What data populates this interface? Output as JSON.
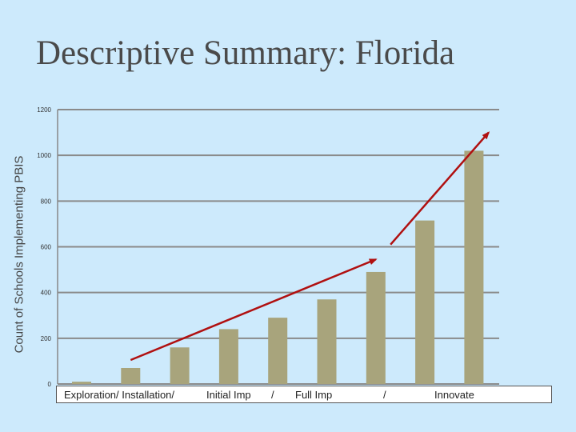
{
  "title": "Descriptive Summary: Florida",
  "chart_data": {
    "type": "bar",
    "title": "",
    "ylabel": "Count of Schools Implementing PBIS",
    "xlabel": "",
    "ylim": [
      0,
      1200
    ],
    "yticks": [
      0,
      200,
      400,
      600,
      800,
      1000,
      1200
    ],
    "grid": true,
    "categories": [
      "",
      "",
      "",
      "",
      "",
      "",
      "",
      "",
      ""
    ],
    "x_labels": [
      "Exploration/ Installation/",
      "Initial Imp",
      "/",
      "Full Imp",
      "/",
      "Innovate"
    ],
    "values": [
      10,
      70,
      160,
      240,
      290,
      370,
      490,
      715,
      1020
    ],
    "bar_color": "#a8a47c",
    "annotations": [
      {
        "type": "arrow",
        "color": "#b01010",
        "from": {
          "bar": 1,
          "value": 105
        },
        "to": {
          "bar": 6,
          "value": 545
        }
      },
      {
        "type": "arrow",
        "color": "#b01010",
        "from": {
          "bar": 6.3,
          "value": 610
        },
        "to": {
          "bar": 8.3,
          "value": 1100
        }
      }
    ]
  }
}
